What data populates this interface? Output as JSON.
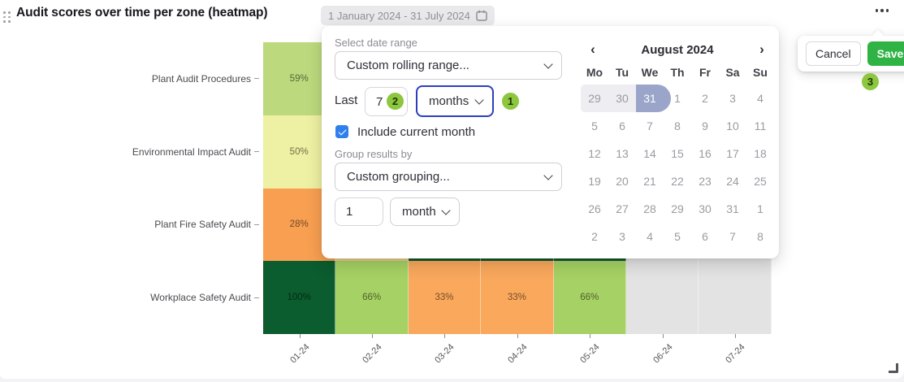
{
  "header": {
    "title": "Audit scores over time per zone (heatmap)",
    "date_range": "1 January 2024 - 31 July 2024"
  },
  "action_popover": {
    "cancel_label": "Cancel",
    "save_label": "Save",
    "step_badge": "3"
  },
  "date_popup": {
    "range_label": "Select date range",
    "range_value": "Custom rolling range...",
    "last_label": "Last",
    "last_value": "7",
    "last_badge": "2",
    "unit_value": "months",
    "unit_badge": "1",
    "include_label": "Include current month",
    "include_checked": true,
    "group_label": "Group results by",
    "group_value": "Custom grouping...",
    "group_count_value": "1",
    "group_unit_value": "month"
  },
  "calendar": {
    "title": "August 2024",
    "weekdays": [
      "Mo",
      "Tu",
      "We",
      "Th",
      "Fr",
      "Sa",
      "Su"
    ],
    "weeks": [
      [
        {
          "d": "29",
          "range": true,
          "range_start": true
        },
        {
          "d": "30",
          "range": true
        },
        {
          "d": "31",
          "selected": true
        },
        {
          "d": "1"
        },
        {
          "d": "2"
        },
        {
          "d": "3"
        },
        {
          "d": "4"
        }
      ],
      [
        {
          "d": "5"
        },
        {
          "d": "6"
        },
        {
          "d": "7"
        },
        {
          "d": "8"
        },
        {
          "d": "9"
        },
        {
          "d": "10"
        },
        {
          "d": "11"
        }
      ],
      [
        {
          "d": "12"
        },
        {
          "d": "13"
        },
        {
          "d": "14"
        },
        {
          "d": "15"
        },
        {
          "d": "16"
        },
        {
          "d": "17"
        },
        {
          "d": "18"
        }
      ],
      [
        {
          "d": "19"
        },
        {
          "d": "20"
        },
        {
          "d": "21"
        },
        {
          "d": "22"
        },
        {
          "d": "23"
        },
        {
          "d": "24"
        },
        {
          "d": "25"
        }
      ],
      [
        {
          "d": "26"
        },
        {
          "d": "27"
        },
        {
          "d": "28"
        },
        {
          "d": "29"
        },
        {
          "d": "30"
        },
        {
          "d": "31"
        },
        {
          "d": "1"
        }
      ],
      [
        {
          "d": "2"
        },
        {
          "d": "3"
        },
        {
          "d": "4"
        },
        {
          "d": "5"
        },
        {
          "d": "6"
        },
        {
          "d": "7"
        },
        {
          "d": "8"
        }
      ]
    ]
  },
  "chart_data": {
    "type": "heatmap",
    "title": "Audit scores over time per zone (heatmap)",
    "x_labels": [
      "01-24",
      "02-24",
      "03-24",
      "04-24",
      "05-24",
      "06-24",
      "07-24"
    ],
    "rows": [
      {
        "label": "Plant Audit Procedures",
        "cells": [
          {
            "v": "59%",
            "c": "#bcda7d"
          },
          {
            "c": null
          },
          {
            "c": null
          },
          {
            "c": null
          },
          {
            "c": null
          },
          {
            "c": null
          },
          {
            "c": null
          }
        ]
      },
      {
        "label": "Environmental Impact Audit",
        "cells": [
          {
            "v": "50%",
            "c": "#eef0a3"
          },
          {
            "c": null
          },
          {
            "c": null
          },
          {
            "c": null
          },
          {
            "c": null
          },
          {
            "c": null
          },
          {
            "c": null
          }
        ]
      },
      {
        "label": "Plant Fire Safety Audit",
        "cells": [
          {
            "v": "28%",
            "c": "#f89f51"
          },
          {
            "c": "#e6cf8d"
          },
          {
            "c": "#14582e"
          },
          {
            "c": "#14582e"
          },
          {
            "c": "#14582e"
          },
          {
            "c": "#e3e3e3"
          },
          {
            "c": "#e3e3e3"
          }
        ]
      },
      {
        "label": "Workplace Safety Audit",
        "cells": [
          {
            "v": "100%",
            "c": "#0b5c2e"
          },
          {
            "v": "66%",
            "c": "#a6d164"
          },
          {
            "v": "33%",
            "c": "#f9a85c"
          },
          {
            "v": "33%",
            "c": "#f9a85c"
          },
          {
            "v": "66%",
            "c": "#a6d164"
          },
          {
            "c": "#e3e3e3"
          },
          {
            "c": "#e3e3e3"
          }
        ]
      }
    ]
  },
  "colors": {
    "save_green": "#2eb344",
    "step_badge_green": "#8dc63f",
    "focus_blue": "#2c3fc0",
    "checkbox_blue": "#2f80ed",
    "selected_day": "#9aa5c9",
    "day_range_bg": "#ededf2",
    "no_data_gray": "#e3e3e3"
  }
}
